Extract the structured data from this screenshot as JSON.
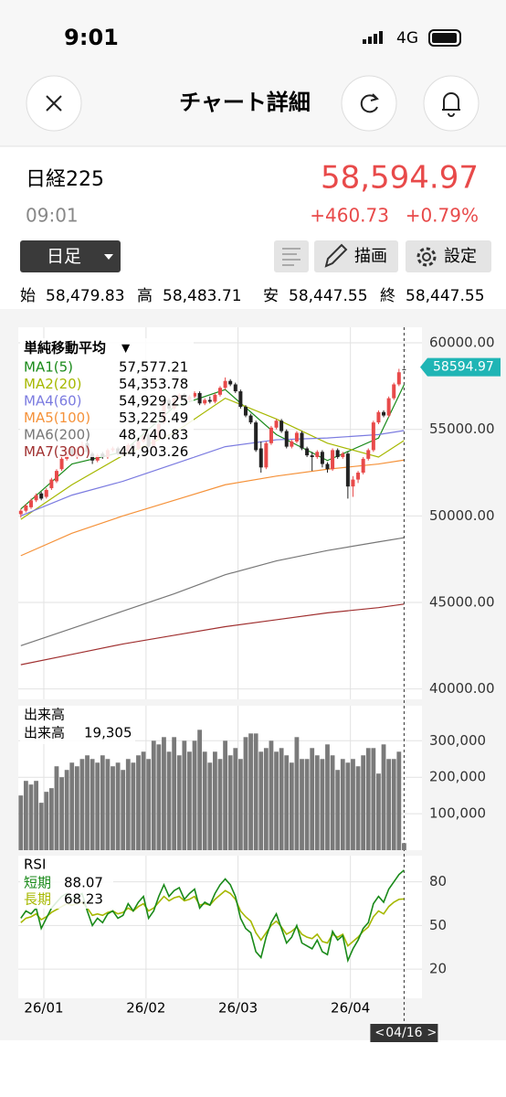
{
  "status": {
    "time": "9:01",
    "network": "4G"
  },
  "header": {
    "title": "チャート詳細"
  },
  "quote": {
    "name": "日経225",
    "time": "09:01",
    "price": "58,594.97",
    "change": "+460.73",
    "change_pct": "+0.79%"
  },
  "toolbar": {
    "period": "日足",
    "draw": "描画",
    "settings": "設定"
  },
  "ohlc": [
    {
      "label": "始",
      "value": "58,479.83"
    },
    {
      "label": "高",
      "value": "58,483.71"
    },
    {
      "label": "安",
      "value": "58,447.55"
    },
    {
      "label": "終",
      "value": "58,447.55"
    }
  ],
  "chart_data": [
    {
      "type": "candlestick",
      "title": "単純移動平均",
      "up_color": "#e84a4a",
      "down_color": "#222222",
      "xlim": [
        -0.5,
        78.5
      ],
      "xticks": [
        {
          "value": 4.5,
          "label": "26/01"
        },
        {
          "value": 24.5,
          "label": "26/02"
        },
        {
          "value": 42.5,
          "label": "26/03"
        },
        {
          "value": 64.5,
          "label": "26/04"
        }
      ],
      "ylim": [
        39400,
        60900
      ],
      "yticks": [
        {
          "value": 40000,
          "label": "40000.00"
        },
        {
          "value": 45000,
          "label": "45000.00"
        },
        {
          "value": 50000,
          "label": "50000.00"
        },
        {
          "value": 55000,
          "label": "55000.00"
        },
        {
          "value": 60000,
          "label": "60000.00"
        }
      ],
      "grid": true,
      "cursor": {
        "x": 75,
        "label": "04/16"
      },
      "last_price": 58594.97,
      "candles": [
        [
          50100,
          50400,
          49900,
          50300
        ],
        [
          50300,
          50700,
          50200,
          50600
        ],
        [
          50500,
          51000,
          50400,
          50900
        ],
        [
          50900,
          51300,
          50800,
          51200
        ],
        [
          51300,
          51400,
          50900,
          51000
        ],
        [
          51100,
          51600,
          51000,
          51500
        ],
        [
          51600,
          52200,
          51500,
          52100
        ],
        [
          52000,
          52700,
          51900,
          52600
        ],
        [
          52700,
          53400,
          52600,
          53300
        ],
        [
          53300,
          53900,
          53200,
          53800
        ],
        [
          53900,
          54000,
          53400,
          53500
        ],
        [
          53400,
          54000,
          53300,
          53900
        ],
        [
          53900,
          54300,
          53800,
          54100
        ],
        [
          54200,
          54300,
          53600,
          53700
        ],
        [
          53600,
          53700,
          53000,
          53200
        ],
        [
          53200,
          53600,
          53100,
          53500
        ],
        [
          53600,
          53700,
          53300,
          53400
        ],
        [
          53400,
          53900,
          53300,
          53800
        ],
        [
          53800,
          54000,
          53700,
          53900
        ],
        [
          53900,
          54000,
          53500,
          53600
        ],
        [
          53600,
          53800,
          53500,
          53700
        ],
        [
          53700,
          54200,
          53600,
          54100
        ],
        [
          54100,
          54200,
          53800,
          53900
        ],
        [
          53900,
          54400,
          53800,
          54300
        ],
        [
          54300,
          54700,
          54200,
          54600
        ],
        [
          54700,
          54800,
          53900,
          54000
        ],
        [
          54000,
          54500,
          53900,
          54400
        ],
        [
          54500,
          55400,
          54400,
          55300
        ],
        [
          55400,
          56700,
          55300,
          56600
        ],
        [
          56700,
          56800,
          56100,
          56200
        ],
        [
          56200,
          56900,
          56100,
          56800
        ],
        [
          56800,
          57100,
          56700,
          57000
        ],
        [
          57000,
          57100,
          56600,
          56700
        ],
        [
          56700,
          57000,
          56600,
          56900
        ],
        [
          56900,
          57200,
          56800,
          57100
        ],
        [
          57100,
          57200,
          56400,
          56500
        ],
        [
          56500,
          56800,
          56400,
          56700
        ],
        [
          56700,
          56900,
          56500,
          56600
        ],
        [
          56600,
          57100,
          56500,
          57000
        ],
        [
          57000,
          57500,
          56900,
          57400
        ],
        [
          57400,
          58000,
          57300,
          57800
        ],
        [
          57800,
          57900,
          57500,
          57600
        ],
        [
          57600,
          57700,
          57100,
          57200
        ],
        [
          57200,
          57300,
          56200,
          56300
        ],
        [
          56300,
          56400,
          55700,
          55800
        ],
        [
          55800,
          55900,
          55300,
          55400
        ],
        [
          55400,
          55500,
          53700,
          53800
        ],
        [
          53900,
          54300,
          52500,
          52800
        ],
        [
          52800,
          54300,
          52700,
          54200
        ],
        [
          54200,
          55200,
          54100,
          55100
        ],
        [
          55100,
          55600,
          55000,
          55500
        ],
        [
          55500,
          55600,
          54800,
          54900
        ],
        [
          54900,
          55000,
          53900,
          54000
        ],
        [
          54000,
          54400,
          53900,
          54300
        ],
        [
          54300,
          54900,
          54200,
          54800
        ],
        [
          54800,
          54900,
          53800,
          53900
        ],
        [
          53900,
          54000,
          53400,
          53500
        ],
        [
          53500,
          53700,
          52600,
          53400
        ],
        [
          53400,
          53800,
          53300,
          53700
        ],
        [
          53700,
          53800,
          52800,
          53000
        ],
        [
          53000,
          53100,
          52500,
          52700
        ],
        [
          52700,
          53900,
          52600,
          53800
        ],
        [
          53800,
          53900,
          53300,
          53400
        ],
        [
          53400,
          53700,
          53300,
          53600
        ],
        [
          53600,
          53700,
          51000,
          51700
        ],
        [
          51700,
          52300,
          51100,
          52100
        ],
        [
          52100,
          52600,
          51900,
          52500
        ],
        [
          52500,
          53400,
          52400,
          53300
        ],
        [
          53300,
          53900,
          53200,
          53800
        ],
        [
          53800,
          55500,
          53700,
          55400
        ],
        [
          55400,
          56100,
          55300,
          56000
        ],
        [
          56000,
          56100,
          55700,
          55800
        ],
        [
          55800,
          56900,
          55700,
          56800
        ],
        [
          56800,
          57700,
          56700,
          57600
        ],
        [
          57600,
          58500,
          57500,
          58300
        ],
        [
          58479.83,
          58483.71,
          58447.55,
          58447.55
        ]
      ],
      "series": [
        {
          "name": "MA1(5)",
          "color": "#1a8a1a",
          "x": [
            0,
            10,
            20,
            30,
            40,
            50,
            60,
            70,
            75
          ],
          "values": [
            50400,
            53000,
            53700,
            56300,
            57300,
            54700,
            53200,
            54500,
            57577.21
          ],
          "value_label": "57,577.21"
        },
        {
          "name": "MA2(20)",
          "color": "#a6b800",
          "x": [
            0,
            10,
            20,
            30,
            40,
            50,
            60,
            70,
            75
          ],
          "values": [
            49800,
            51800,
            53500,
            54800,
            56800,
            55600,
            54200,
            53400,
            54353.78
          ],
          "value_label": "54,353.78"
        },
        {
          "name": "MA4(60)",
          "color": "#7b7be0",
          "x": [
            0,
            10,
            20,
            30,
            40,
            50,
            60,
            70,
            75
          ],
          "values": [
            50000,
            51200,
            52000,
            53000,
            54000,
            54400,
            54500,
            54700,
            54929.25
          ],
          "value_label": "54,929.25"
        },
        {
          "name": "MA5(100)",
          "color": "#f5923a",
          "x": [
            0,
            10,
            20,
            30,
            40,
            50,
            60,
            70,
            75
          ],
          "values": [
            47700,
            49000,
            50000,
            50900,
            51800,
            52300,
            52700,
            53000,
            53225.49
          ],
          "value_label": "53,225.49"
        },
        {
          "name": "MA6(200)",
          "color": "#777777",
          "x": [
            0,
            10,
            20,
            30,
            40,
            50,
            60,
            70,
            75
          ],
          "values": [
            42500,
            43500,
            44500,
            45500,
            46600,
            47400,
            48000,
            48500,
            48740.83
          ],
          "value_label": "48,740.83"
        },
        {
          "name": "MA7(300)",
          "color": "#a03030",
          "x": [
            0,
            10,
            20,
            30,
            40,
            50,
            60,
            70,
            75
          ],
          "values": [
            41400,
            42000,
            42600,
            43100,
            43600,
            44000,
            44400,
            44700,
            44903.26
          ],
          "value_label": "44,903.26"
        }
      ]
    },
    {
      "type": "bar",
      "title": "出来高",
      "series_name": "出来高",
      "last_label": "19,305",
      "color": "#7a7a7a",
      "ylim": [
        0,
        396000
      ],
      "yticks": [
        {
          "value": 100000,
          "label": "100,000"
        },
        {
          "value": 200000,
          "label": "200,000"
        },
        {
          "value": 300000,
          "label": "300,000"
        }
      ],
      "values": [
        150000,
        190000,
        180000,
        190000,
        130000,
        160000,
        170000,
        230000,
        200000,
        220000,
        240000,
        230000,
        250000,
        260000,
        250000,
        240000,
        260000,
        250000,
        230000,
        240000,
        220000,
        250000,
        240000,
        260000,
        270000,
        250000,
        300000,
        290000,
        310000,
        270000,
        310000,
        260000,
        300000,
        270000,
        300000,
        330000,
        270000,
        240000,
        270000,
        250000,
        300000,
        260000,
        280000,
        250000,
        310000,
        320000,
        320000,
        270000,
        280000,
        300000,
        270000,
        280000,
        260000,
        240000,
        310000,
        250000,
        250000,
        280000,
        260000,
        250000,
        290000,
        260000,
        220000,
        250000,
        240000,
        250000,
        230000,
        260000,
        280000,
        280000,
        210000,
        290000,
        250000,
        250000,
        270000,
        19305
      ]
    },
    {
      "type": "line",
      "title": "RSI",
      "ylim": [
        0,
        98
      ],
      "yticks": [
        20,
        50,
        80
      ],
      "series": [
        {
          "name": "短期",
          "color": "#1a8a1a",
          "value_label": "88.07",
          "values": [
            55,
            60,
            58,
            62,
            48,
            55,
            62,
            66,
            70,
            72,
            68,
            70,
            72,
            60,
            50,
            55,
            52,
            58,
            60,
            55,
            57,
            65,
            60,
            66,
            70,
            55,
            60,
            70,
            78,
            70,
            74,
            76,
            68,
            72,
            75,
            62,
            66,
            64,
            72,
            78,
            82,
            78,
            70,
            55,
            48,
            45,
            32,
            28,
            42,
            52,
            58,
            48,
            38,
            42,
            50,
            38,
            36,
            34,
            40,
            32,
            30,
            46,
            40,
            43,
            26,
            34,
            40,
            48,
            52,
            65,
            70,
            66,
            75,
            80,
            85,
            88.07
          ]
        },
        {
          "name": "長期",
          "color": "#a6b800",
          "value_label": "68.23",
          "values": [
            52,
            55,
            56,
            58,
            54,
            56,
            59,
            61,
            63,
            65,
            64,
            65,
            66,
            62,
            57,
            58,
            57,
            59,
            60,
            58,
            59,
            62,
            60,
            63,
            65,
            60,
            62,
            66,
            70,
            67,
            69,
            70,
            67,
            68,
            70,
            64,
            65,
            64,
            68,
            71,
            74,
            72,
            68,
            60,
            56,
            53,
            45,
            40,
            45,
            50,
            53,
            49,
            44,
            46,
            49,
            44,
            42,
            41,
            44,
            39,
            38,
            44,
            42,
            44,
            36,
            39,
            42,
            46,
            49,
            56,
            60,
            58,
            63,
            66,
            68,
            68.23
          ]
        }
      ]
    }
  ]
}
